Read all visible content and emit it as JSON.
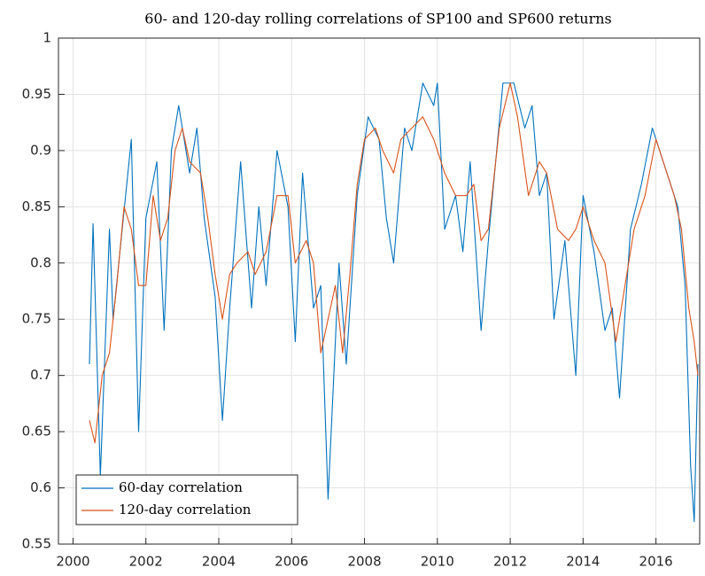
{
  "chart_data": {
    "type": "line",
    "title": "60- and 120-day rolling correlations of SP100 and SP600 returns",
    "xlim": [
      1999.6,
      2017.2
    ],
    "xticks": [
      2000,
      2002,
      2004,
      2006,
      2008,
      2010,
      2012,
      2014,
      2016
    ],
    "ylim": [
      0.55,
      1
    ],
    "yticks": [
      0.55,
      0.6,
      0.65,
      0.7,
      0.75,
      0.8,
      0.85,
      0.9,
      0.95,
      1
    ],
    "grid": true,
    "legend": "lower left",
    "series": [
      {
        "name": "60-day correlation",
        "color": "#0072bd",
        "x": [
          2000.45,
          2000.55,
          2000.75,
          2001.0,
          2001.1,
          2001.6,
          2001.8,
          2002.0,
          2002.3,
          2002.5,
          2002.7,
          2002.9,
          2003.2,
          2003.4,
          2003.6,
          2003.9,
          2004.1,
          2004.3,
          2004.6,
          2004.9,
          2005.1,
          2005.3,
          2005.6,
          2005.9,
          2006.1,
          2006.3,
          2006.6,
          2006.8,
          2007.0,
          2007.3,
          2007.5,
          2007.8,
          2008.1,
          2008.4,
          2008.6,
          2008.8,
          2009.1,
          2009.3,
          2009.6,
          2009.9,
          2010.0,
          2010.2,
          2010.5,
          2010.7,
          2010.9,
          2011.2,
          2011.4,
          2011.8,
          2012.1,
          2012.4,
          2012.6,
          2012.8,
          2013.0,
          2013.2,
          2013.5,
          2013.8,
          2014.0,
          2014.3,
          2014.6,
          2014.8,
          2015.0,
          2015.3,
          2015.6,
          2015.9,
          2016.1,
          2016.4,
          2016.6,
          2016.8,
          2016.95,
          2017.05,
          2017.15
        ],
        "values": [
          0.71,
          0.835,
          0.61,
          0.83,
          0.75,
          0.91,
          0.65,
          0.84,
          0.89,
          0.74,
          0.9,
          0.94,
          0.88,
          0.92,
          0.84,
          0.77,
          0.66,
          0.76,
          0.89,
          0.76,
          0.85,
          0.78,
          0.9,
          0.85,
          0.73,
          0.88,
          0.76,
          0.78,
          0.59,
          0.8,
          0.71,
          0.86,
          0.93,
          0.91,
          0.84,
          0.8,
          0.92,
          0.9,
          0.96,
          0.94,
          0.96,
          0.83,
          0.86,
          0.81,
          0.89,
          0.74,
          0.82,
          0.96,
          0.96,
          0.92,
          0.94,
          0.86,
          0.88,
          0.75,
          0.82,
          0.7,
          0.86,
          0.81,
          0.74,
          0.76,
          0.68,
          0.83,
          0.87,
          0.92,
          0.9,
          0.87,
          0.85,
          0.78,
          0.62,
          0.57,
          0.71
        ]
      },
      {
        "name": "120-day correlation",
        "color": "#d95319",
        "x": [
          2000.45,
          2000.6,
          2000.8,
          2001.0,
          2001.2,
          2001.4,
          2001.6,
          2001.8,
          2002.0,
          2002.2,
          2002.4,
          2002.6,
          2002.8,
          2003.0,
          2003.2,
          2003.5,
          2003.7,
          2003.9,
          2004.1,
          2004.3,
          2004.5,
          2004.8,
          2005.0,
          2005.3,
          2005.6,
          2005.9,
          2006.1,
          2006.4,
          2006.6,
          2006.8,
          2007.0,
          2007.2,
          2007.4,
          2007.6,
          2007.8,
          2008.0,
          2008.3,
          2008.5,
          2008.8,
          2009.0,
          2009.3,
          2009.6,
          2009.9,
          2010.2,
          2010.5,
          2010.8,
          2011.0,
          2011.2,
          2011.4,
          2011.7,
          2012.0,
          2012.2,
          2012.5,
          2012.8,
          2013.0,
          2013.3,
          2013.6,
          2013.8,
          2014.0,
          2014.3,
          2014.6,
          2014.9,
          2015.1,
          2015.4,
          2015.7,
          2016.0,
          2016.2,
          2016.5,
          2016.7,
          2016.9,
          2017.05,
          2017.15
        ],
        "values": [
          0.66,
          0.64,
          0.7,
          0.72,
          0.78,
          0.85,
          0.83,
          0.78,
          0.78,
          0.86,
          0.82,
          0.84,
          0.9,
          0.92,
          0.89,
          0.88,
          0.84,
          0.79,
          0.75,
          0.79,
          0.8,
          0.81,
          0.79,
          0.81,
          0.86,
          0.86,
          0.8,
          0.82,
          0.8,
          0.72,
          0.75,
          0.78,
          0.72,
          0.79,
          0.87,
          0.91,
          0.92,
          0.9,
          0.88,
          0.91,
          0.92,
          0.93,
          0.91,
          0.88,
          0.86,
          0.86,
          0.87,
          0.82,
          0.83,
          0.92,
          0.96,
          0.93,
          0.86,
          0.89,
          0.88,
          0.83,
          0.82,
          0.83,
          0.85,
          0.82,
          0.8,
          0.73,
          0.77,
          0.83,
          0.86,
          0.91,
          0.89,
          0.86,
          0.83,
          0.76,
          0.73,
          0.7
        ]
      }
    ]
  }
}
